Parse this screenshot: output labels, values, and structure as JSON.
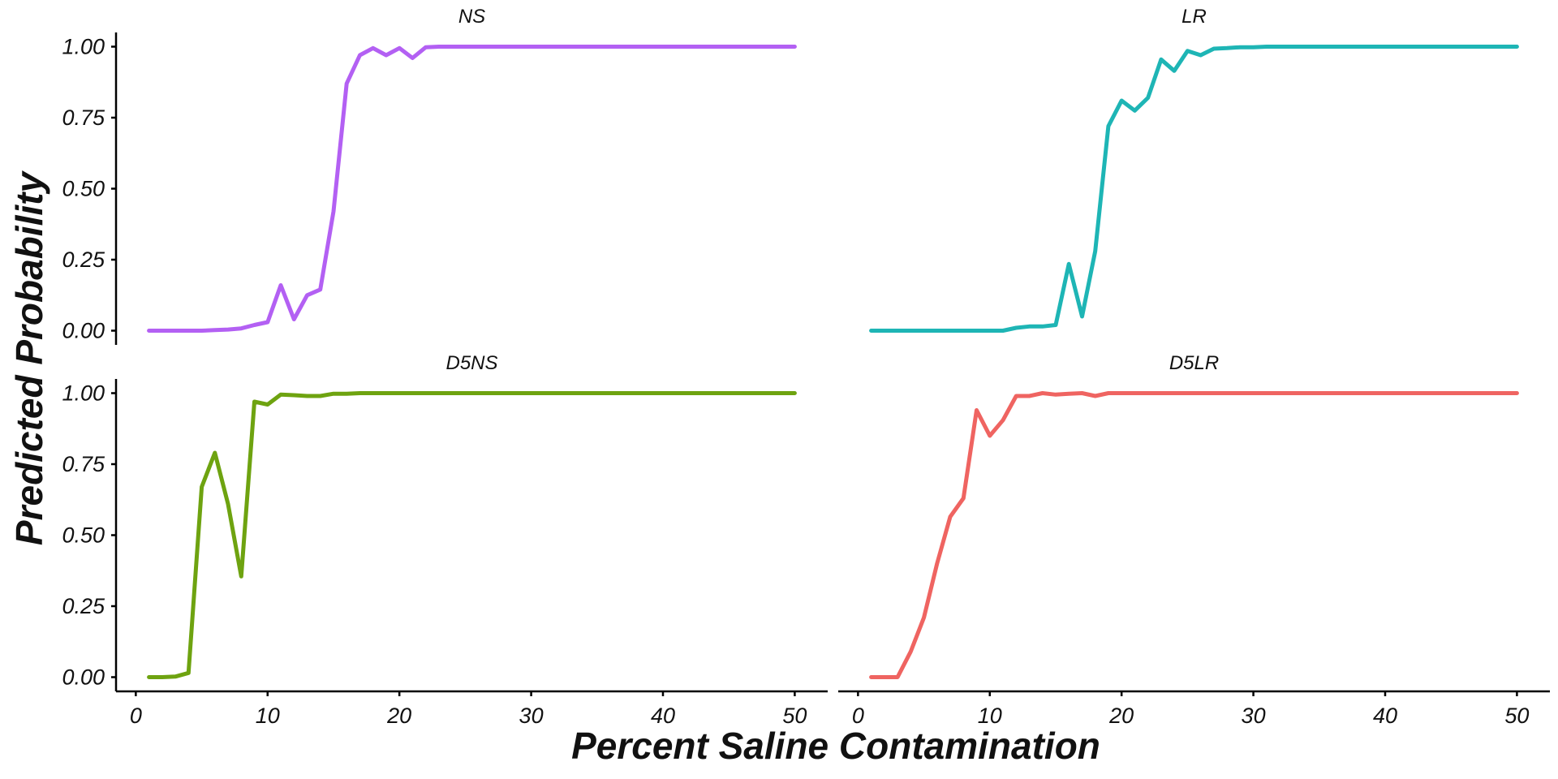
{
  "chart_data": {
    "type": "line",
    "xlabel": "Percent Saline Contamination",
    "ylabel": "Predicted Probability",
    "xlim": [
      -1.5,
      52.5
    ],
    "ylim": [
      -0.05,
      1.05
    ],
    "x_ticks": [
      0,
      10,
      20,
      30,
      40,
      50
    ],
    "y_ticks": [
      0.0,
      0.25,
      0.5,
      0.75,
      1.0
    ],
    "y_tick_labels": [
      "0.00",
      "0.25",
      "0.50",
      "0.75",
      "1.00"
    ],
    "grid": false,
    "legend": "none",
    "panels": [
      {
        "name": "NS",
        "color": "#B360F3",
        "x": [
          1,
          2,
          3,
          4,
          5,
          6,
          7,
          8,
          9,
          10,
          11,
          12,
          13,
          14,
          15,
          16,
          17,
          18,
          19,
          20,
          21,
          22,
          23,
          24,
          25,
          26,
          27,
          28,
          29,
          30,
          31,
          32,
          33,
          34,
          35,
          36,
          37,
          38,
          39,
          40,
          41,
          42,
          43,
          44,
          45,
          46,
          47,
          48,
          49,
          50
        ],
        "y": [
          0.0,
          0.0,
          0.0,
          0.0,
          0.0,
          0.002,
          0.004,
          0.008,
          0.02,
          0.03,
          0.16,
          0.04,
          0.125,
          0.145,
          0.42,
          0.87,
          0.97,
          0.995,
          0.97,
          0.995,
          0.96,
          0.998,
          1,
          1,
          1,
          1,
          1,
          1,
          1,
          1,
          1,
          1,
          1,
          1,
          1,
          1,
          1,
          1,
          1,
          1,
          1,
          1,
          1,
          1,
          1,
          1,
          1,
          1,
          1,
          1
        ]
      },
      {
        "name": "LR",
        "color": "#1EB5B5",
        "x": [
          1,
          2,
          3,
          4,
          5,
          6,
          7,
          8,
          9,
          10,
          11,
          12,
          13,
          14,
          15,
          16,
          17,
          18,
          19,
          20,
          21,
          22,
          23,
          24,
          25,
          26,
          27,
          28,
          29,
          30,
          31,
          32,
          33,
          34,
          35,
          36,
          37,
          38,
          39,
          40,
          41,
          42,
          43,
          44,
          45,
          46,
          47,
          48,
          49,
          50
        ],
        "y": [
          0.0,
          0.0,
          0.0,
          0.0,
          0.0,
          0.0,
          0.0,
          0.0,
          0.0,
          0.0,
          0.0,
          0.01,
          0.015,
          0.015,
          0.02,
          0.235,
          0.05,
          0.28,
          0.72,
          0.81,
          0.775,
          0.82,
          0.955,
          0.915,
          0.985,
          0.97,
          0.993,
          0.995,
          0.998,
          0.998,
          1,
          1,
          1,
          1,
          1,
          1,
          1,
          1,
          1,
          1,
          1,
          1,
          1,
          1,
          1,
          1,
          1,
          1,
          1,
          1
        ]
      },
      {
        "name": "D5NS",
        "color": "#6EA310",
        "x": [
          1,
          2,
          3,
          4,
          5,
          6,
          7,
          8,
          9,
          10,
          11,
          12,
          13,
          14,
          15,
          16,
          17,
          18,
          19,
          20,
          21,
          22,
          23,
          24,
          25,
          26,
          27,
          28,
          29,
          30,
          31,
          32,
          33,
          34,
          35,
          36,
          37,
          38,
          39,
          40,
          41,
          42,
          43,
          44,
          45,
          46,
          47,
          48,
          49,
          50
        ],
        "y": [
          0.0,
          0.0,
          0.002,
          0.015,
          0.67,
          0.79,
          0.61,
          0.355,
          0.97,
          0.96,
          0.995,
          0.993,
          0.99,
          0.99,
          0.998,
          0.998,
          1,
          1,
          1,
          1,
          1,
          1,
          1,
          1,
          1,
          1,
          1,
          1,
          1,
          1,
          1,
          1,
          1,
          1,
          1,
          1,
          1,
          1,
          1,
          1,
          1,
          1,
          1,
          1,
          1,
          1,
          1,
          1,
          1,
          1
        ]
      },
      {
        "name": "D5LR",
        "color": "#EF6461",
        "x": [
          1,
          2,
          3,
          4,
          5,
          6,
          7,
          8,
          9,
          10,
          11,
          12,
          13,
          14,
          15,
          16,
          17,
          18,
          19,
          20,
          21,
          22,
          23,
          24,
          25,
          26,
          27,
          28,
          29,
          30,
          31,
          32,
          33,
          34,
          35,
          36,
          37,
          38,
          39,
          40,
          41,
          42,
          43,
          44,
          45,
          46,
          47,
          48,
          49,
          50
        ],
        "y": [
          0.0,
          0.0,
          0.0,
          0.09,
          0.21,
          0.4,
          0.565,
          0.63,
          0.94,
          0.85,
          0.905,
          0.99,
          0.99,
          1.0,
          0.995,
          0.998,
          1.0,
          0.99,
          1,
          1,
          1,
          1,
          1,
          1,
          1,
          1,
          1,
          1,
          1,
          1,
          1,
          1,
          1,
          1,
          1,
          1,
          1,
          1,
          1,
          1,
          1,
          1,
          1,
          1,
          1,
          1,
          1,
          1,
          1,
          1
        ]
      }
    ]
  }
}
